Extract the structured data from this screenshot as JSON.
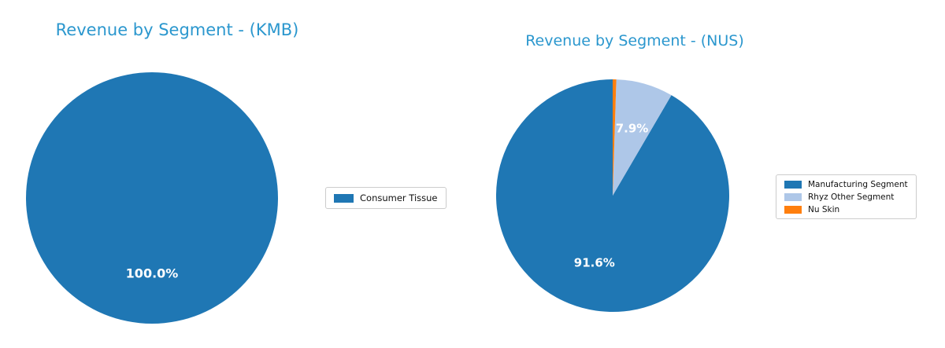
{
  "figure": {
    "background": "#ffffff",
    "title_color": "#2b97ce",
    "pct_label_color": "#ffffff"
  },
  "chart_data": [
    {
      "type": "pie",
      "title": "Revenue by Segment - (KMB)",
      "labels": [
        "Consumer Tissue"
      ],
      "values": [
        100.0
      ],
      "colors": [
        "#1f77b4"
      ],
      "pct_labels": [
        "100.0%"
      ],
      "start_angle": 90,
      "counterclockwise": true,
      "label_radius": 0.6,
      "legend": {
        "position": "right of pie",
        "entries": [
          "Consumer Tissue"
        ]
      }
    },
    {
      "type": "pie",
      "title": "Revenue by Segment - (NUS)",
      "labels": [
        "Manufacturing Segment",
        "Rhyz Other Segment",
        "Nu Skin"
      ],
      "values": [
        91.6,
        7.9,
        0.5
      ],
      "colors": [
        "#1f77b4",
        "#aec7e8",
        "#ff7f0e"
      ],
      "pct_labels": [
        "91.6%",
        "7.9%",
        ""
      ],
      "start_angle": 90,
      "counterclockwise": true,
      "label_radius": 0.6,
      "legend": {
        "position": "right of pie",
        "entries": [
          "Manufacturing Segment",
          "Rhyz Other Segment",
          "Nu Skin"
        ]
      }
    }
  ]
}
